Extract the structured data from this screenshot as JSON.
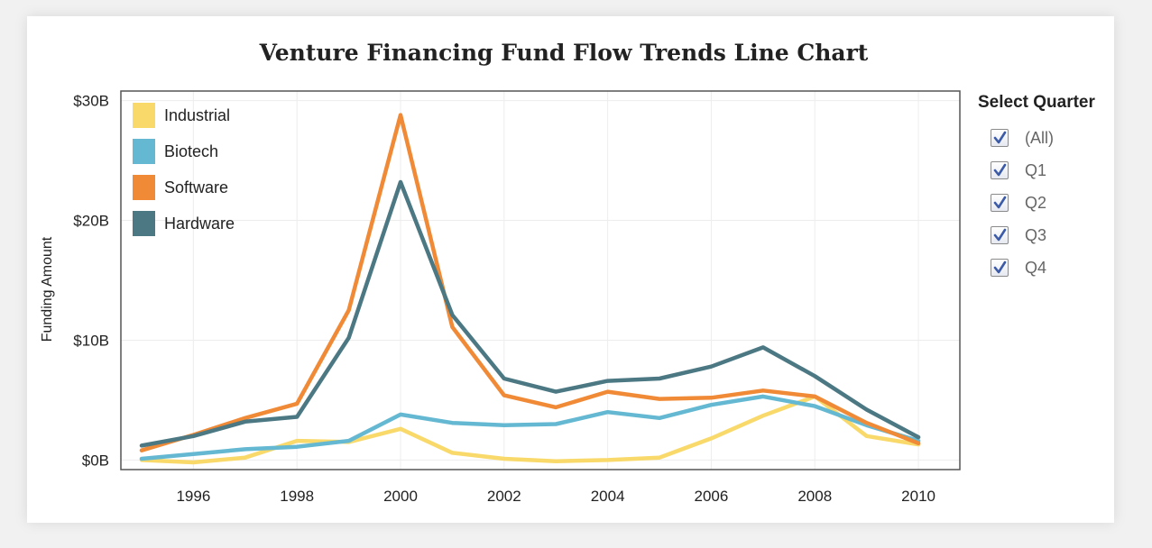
{
  "chart_data": {
    "type": "line",
    "title": "Venture Financing Fund Flow Trends Line Chart",
    "ylabel": "Funding Amount",
    "xlabel": "",
    "x": [
      1995,
      1996,
      1997,
      1998,
      1999,
      2000,
      2001,
      2002,
      2003,
      2004,
      2005,
      2006,
      2007,
      2008,
      2009,
      2010
    ],
    "xlim": [
      1994.6,
      2010.8
    ],
    "ylim": [
      -0.8,
      30.8
    ],
    "x_ticks": [
      1996,
      1998,
      2000,
      2002,
      2004,
      2006,
      2008,
      2010
    ],
    "x_tick_labels": [
      "1996",
      "1998",
      "2000",
      "2002",
      "2004",
      "2006",
      "2008",
      "2010"
    ],
    "y_ticks": [
      0,
      10,
      20,
      30
    ],
    "y_tick_labels": [
      "$0B",
      "$10B",
      "$20B",
      "$30B"
    ],
    "grid": true,
    "legend_position": "top-left",
    "series": [
      {
        "name": "Industrial",
        "color": "#f8d96a",
        "values": [
          0,
          -0.2,
          0.2,
          1.6,
          1.5,
          2.6,
          0.6,
          0.1,
          -0.1,
          0.0,
          0.2,
          1.8,
          3.7,
          5.3,
          2.0,
          1.3
        ]
      },
      {
        "name": "Biotech",
        "color": "#64b8d2",
        "values": [
          0.1,
          0.5,
          0.9,
          1.1,
          1.6,
          3.8,
          3.1,
          2.9,
          3.0,
          4.0,
          3.5,
          4.6,
          5.3,
          4.5,
          2.9,
          1.6
        ]
      },
      {
        "name": "Software",
        "color": "#f08a36",
        "values": [
          0.8,
          2.1,
          3.5,
          4.7,
          12.5,
          28.8,
          11.1,
          5.4,
          4.4,
          5.7,
          5.1,
          5.2,
          5.8,
          5.3,
          3.1,
          1.4
        ]
      },
      {
        "name": "Hardware",
        "color": "#4b7883",
        "values": [
          1.2,
          2.0,
          3.2,
          3.6,
          10.2,
          23.2,
          12.1,
          6.8,
          5.7,
          6.6,
          6.8,
          7.8,
          9.4,
          7.0,
          4.2,
          1.9
        ]
      }
    ]
  },
  "filter": {
    "title": "Select Quarter",
    "options": [
      {
        "label": "(All)",
        "checked": true
      },
      {
        "label": "Q1",
        "checked": true
      },
      {
        "label": "Q2",
        "checked": true
      },
      {
        "label": "Q3",
        "checked": true
      },
      {
        "label": "Q4",
        "checked": true
      }
    ]
  }
}
